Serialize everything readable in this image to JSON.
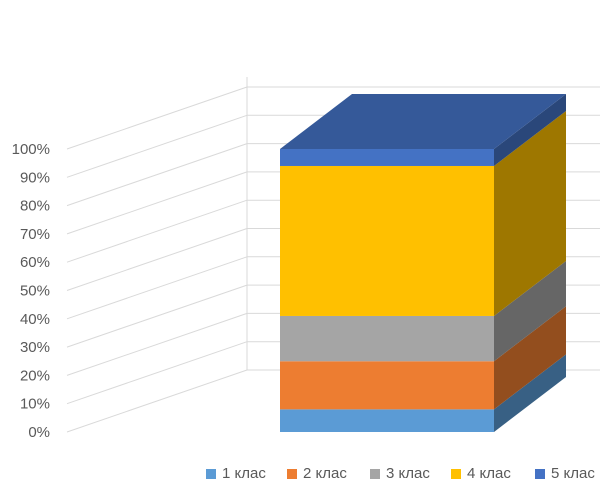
{
  "chart_data": {
    "type": "bar",
    "variant": "3d-stacked-percent",
    "categories": [
      ""
    ],
    "series": [
      {
        "name": "1 клас",
        "values": [
          8
        ],
        "color": "#5B9BD5"
      },
      {
        "name": "2 клас",
        "values": [
          17
        ],
        "color": "#ED7D31"
      },
      {
        "name": "3 клас",
        "values": [
          16
        ],
        "color": "#A5A5A5"
      },
      {
        "name": "4 клас",
        "values": [
          53
        ],
        "color": "#FFC000"
      },
      {
        "name": "5 клас",
        "values": [
          6
        ],
        "color": "#4472C4"
      }
    ],
    "y_ticks": [
      "0%",
      "10%",
      "20%",
      "30%",
      "40%",
      "50%",
      "60%",
      "70%",
      "80%",
      "90%",
      "100%"
    ],
    "ylim": [
      0,
      100
    ],
    "title": "",
    "xlabel": "",
    "ylabel": "",
    "grid": true,
    "legend_position": "bottom"
  }
}
